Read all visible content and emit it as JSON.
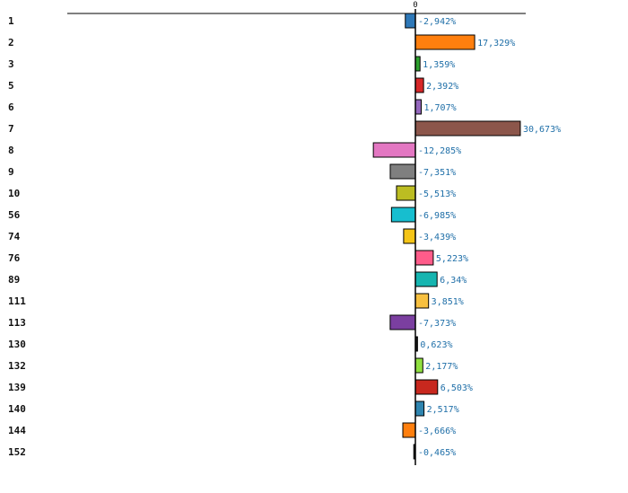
{
  "chart_data": {
    "type": "bar",
    "orientation": "horizontal",
    "categories": [
      "1",
      "2",
      "3",
      "5",
      "6",
      "7",
      "8",
      "9",
      "10",
      "56",
      "74",
      "76",
      "89",
      "111",
      "113",
      "130",
      "132",
      "139",
      "140",
      "144",
      "152"
    ],
    "values": [
      -2.942,
      17.329,
      1.359,
      2.392,
      1.707,
      30.673,
      -12.285,
      -7.351,
      -5.513,
      -6.985,
      -3.439,
      5.223,
      6.34,
      3.851,
      -7.373,
      0.623,
      2.177,
      6.503,
      2.517,
      -3.666,
      -0.465
    ],
    "value_labels": [
      "-2,942%",
      "17,329%",
      "1,359%",
      "2,392%",
      "1,707%",
      "30,673%",
      "-12,285%",
      "-7,351%",
      "-5,513%",
      "-6,985%",
      "-3,439%",
      "5,223%",
      "6,34%",
      "3,851%",
      "-7,373%",
      "0,623%",
      "2,177%",
      "6,503%",
      "2,517%",
      "-3,666%",
      "-0,465%"
    ],
    "colors": [
      "#2e78b8",
      "#ff7f0e",
      "#2ca02c",
      "#d62728",
      "#9467bd",
      "#8c564b",
      "#e377c2",
      "#7f7f7f",
      "#bcbd22",
      "#17becf",
      "#f5c518",
      "#ff5c8a",
      "#16b5b0",
      "#f7c040",
      "#7b3fa0",
      "#1a1a1a",
      "#90e040",
      "#c8281e",
      "#2f85b0",
      "#ff7f0e",
      "#333333"
    ],
    "zero_tick_label": "0",
    "title": "",
    "xlabel": "",
    "ylabel": "",
    "xlim": [
      -102,
      32
    ],
    "grid": false,
    "legend": "none"
  }
}
